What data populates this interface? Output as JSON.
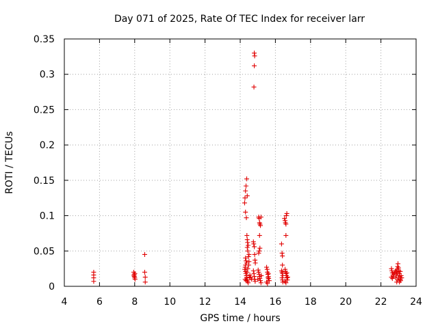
{
  "chart_data": {
    "type": "scatter",
    "title": "Day 071 of 2025, Rate Of TEC Index for receiver larr",
    "xlabel": "GPS time / hours",
    "ylabel": "ROTI / TECUs",
    "xlim": [
      4,
      24
    ],
    "ylim": [
      0,
      0.35
    ],
    "xticks": [
      4,
      6,
      8,
      10,
      12,
      14,
      16,
      18,
      20,
      22,
      24
    ],
    "xtick_labels": [
      "4",
      "6",
      "8",
      "10",
      "12",
      "14",
      "16",
      "18",
      "20",
      "22",
      "24"
    ],
    "yticks": [
      0,
      0.05,
      0.1,
      0.15,
      0.2,
      0.25,
      0.3,
      0.35
    ],
    "ytick_labels": [
      "0",
      "0.05",
      "0.1",
      "0.15",
      "0.2",
      "0.25",
      "0.3",
      "0.35"
    ],
    "grid": true,
    "marker": "plus",
    "color": "#e00000",
    "series": [
      {
        "name": "ROTI",
        "points": [
          [
            5.67,
            0.02
          ],
          [
            5.67,
            0.016
          ],
          [
            5.67,
            0.012
          ],
          [
            5.67,
            0.007
          ],
          [
            7.95,
            0.02
          ],
          [
            7.97,
            0.017
          ],
          [
            7.98,
            0.014
          ],
          [
            8.0,
            0.012
          ],
          [
            8.02,
            0.01
          ],
          [
            7.96,
            0.015
          ],
          [
            8.01,
            0.018
          ],
          [
            8.57,
            0.045
          ],
          [
            8.57,
            0.02
          ],
          [
            8.6,
            0.013
          ],
          [
            8.6,
            0.006
          ],
          [
            14.25,
            0.118
          ],
          [
            14.27,
            0.125
          ],
          [
            14.3,
            0.135
          ],
          [
            14.33,
            0.142
          ],
          [
            14.37,
            0.152
          ],
          [
            14.4,
            0.128
          ],
          [
            14.3,
            0.105
          ],
          [
            14.35,
            0.097
          ],
          [
            14.38,
            0.072
          ],
          [
            14.4,
            0.066
          ],
          [
            14.42,
            0.062
          ],
          [
            14.45,
            0.058
          ],
          [
            14.4,
            0.055
          ],
          [
            14.43,
            0.05
          ],
          [
            14.5,
            0.045
          ],
          [
            14.47,
            0.042
          ],
          [
            14.3,
            0.04
          ],
          [
            14.33,
            0.036
          ],
          [
            14.36,
            0.033
          ],
          [
            14.3,
            0.03
          ],
          [
            14.28,
            0.027
          ],
          [
            14.26,
            0.024
          ],
          [
            14.3,
            0.021
          ],
          [
            14.32,
            0.018
          ],
          [
            14.35,
            0.015
          ],
          [
            14.37,
            0.012
          ],
          [
            14.4,
            0.009
          ],
          [
            14.42,
            0.007
          ],
          [
            14.45,
            0.005
          ],
          [
            14.28,
            0.01
          ],
          [
            14.33,
            0.008
          ],
          [
            14.38,
            0.02
          ],
          [
            14.43,
            0.025
          ],
          [
            14.48,
            0.03
          ],
          [
            14.5,
            0.035
          ],
          [
            14.52,
            0.013
          ],
          [
            14.55,
            0.016
          ],
          [
            14.6,
            0.012
          ],
          [
            14.65,
            0.01
          ],
          [
            14.75,
            0.063
          ],
          [
            14.77,
            0.06
          ],
          [
            14.8,
            0.056
          ],
          [
            14.82,
            0.045
          ],
          [
            14.84,
            0.037
          ],
          [
            14.86,
            0.033
          ],
          [
            14.75,
            0.022
          ],
          [
            14.78,
            0.018
          ],
          [
            14.8,
            0.014
          ],
          [
            14.82,
            0.01
          ],
          [
            14.85,
            0.007
          ],
          [
            14.8,
            0.33
          ],
          [
            14.82,
            0.326
          ],
          [
            14.8,
            0.312
          ],
          [
            14.78,
            0.282
          ],
          [
            15.05,
            0.098
          ],
          [
            15.08,
            0.096
          ],
          [
            15.1,
            0.09
          ],
          [
            15.12,
            0.088
          ],
          [
            15.15,
            0.086
          ],
          [
            15.18,
            0.098
          ],
          [
            15.1,
            0.072
          ],
          [
            15.12,
            0.054
          ],
          [
            15.08,
            0.05
          ],
          [
            15.05,
            0.047
          ],
          [
            15.02,
            0.023
          ],
          [
            15.05,
            0.02
          ],
          [
            15.08,
            0.017
          ],
          [
            15.1,
            0.014
          ],
          [
            15.12,
            0.011
          ],
          [
            15.15,
            0.008
          ],
          [
            15.18,
            0.005
          ],
          [
            15.0,
            0.01
          ],
          [
            15.2,
            0.015
          ],
          [
            15.5,
            0.027
          ],
          [
            15.53,
            0.024
          ],
          [
            15.55,
            0.02
          ],
          [
            15.57,
            0.017
          ],
          [
            15.6,
            0.014
          ],
          [
            15.62,
            0.011
          ],
          [
            15.65,
            0.008
          ],
          [
            15.5,
            0.006
          ],
          [
            15.55,
            0.004
          ],
          [
            15.6,
            0.018
          ],
          [
            15.58,
            0.012
          ],
          [
            16.35,
            0.06
          ],
          [
            16.38,
            0.047
          ],
          [
            16.4,
            0.043
          ],
          [
            16.4,
            0.03
          ],
          [
            16.35,
            0.022
          ],
          [
            16.38,
            0.02
          ],
          [
            16.4,
            0.018
          ],
          [
            16.42,
            0.015
          ],
          [
            16.38,
            0.012
          ],
          [
            16.4,
            0.009
          ],
          [
            16.42,
            0.006
          ],
          [
            16.52,
            0.096
          ],
          [
            16.55,
            0.093
          ],
          [
            16.57,
            0.09
          ],
          [
            16.6,
            0.088
          ],
          [
            16.62,
            0.1
          ],
          [
            16.65,
            0.103
          ],
          [
            16.6,
            0.072
          ],
          [
            16.55,
            0.024
          ],
          [
            16.57,
            0.021
          ],
          [
            16.6,
            0.018
          ],
          [
            16.62,
            0.015
          ],
          [
            16.65,
            0.012
          ],
          [
            16.68,
            0.009
          ],
          [
            16.55,
            0.007
          ],
          [
            16.6,
            0.005
          ],
          [
            16.65,
            0.019
          ],
          [
            16.7,
            0.013
          ],
          [
            22.6,
            0.025
          ],
          [
            22.62,
            0.022
          ],
          [
            22.65,
            0.019
          ],
          [
            22.68,
            0.016
          ],
          [
            22.6,
            0.013
          ],
          [
            22.65,
            0.011
          ],
          [
            22.7,
            0.014
          ],
          [
            22.75,
            0.018
          ],
          [
            22.8,
            0.02
          ],
          [
            22.85,
            0.012
          ],
          [
            22.88,
            0.016
          ],
          [
            22.9,
            0.02
          ],
          [
            22.92,
            0.024
          ],
          [
            22.95,
            0.028
          ],
          [
            22.97,
            0.032
          ],
          [
            23.0,
            0.026
          ],
          [
            23.02,
            0.022
          ],
          [
            23.05,
            0.018
          ],
          [
            23.07,
            0.014
          ],
          [
            23.1,
            0.01
          ],
          [
            23.12,
            0.008
          ],
          [
            22.9,
            0.006
          ],
          [
            22.95,
            0.009
          ],
          [
            23.0,
            0.012
          ],
          [
            23.05,
            0.006
          ],
          [
            23.1,
            0.021
          ],
          [
            22.95,
            0.018
          ],
          [
            23.15,
            0.015
          ],
          [
            23.18,
            0.012
          ],
          [
            22.85,
            0.022
          ]
        ]
      }
    ]
  }
}
